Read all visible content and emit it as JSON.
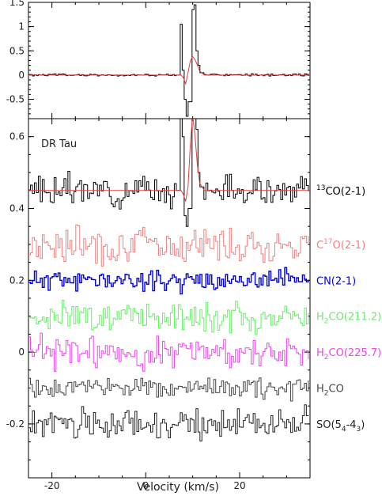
{
  "chart_data": [
    {
      "type": "line",
      "panel": "top",
      "title": "",
      "xlabel": "",
      "ylabel": "",
      "xlim": [
        -25,
        35
      ],
      "ylim": [
        -0.9,
        1.5
      ],
      "yticks": [
        -0.5,
        0,
        0.5,
        1,
        1.5
      ],
      "ytick_labels": [
        "-0.5",
        "0",
        "0.5",
        "1",
        "1.5"
      ],
      "series": [
        {
          "color": "#000000",
          "style": "step",
          "x": [
            -25,
            -20,
            -15,
            -10,
            -5,
            0,
            5,
            6.5,
            7.0,
            7.5,
            8.0,
            8.5,
            9.0,
            9.5,
            10.0,
            10.5,
            11.0,
            11.5,
            12,
            15,
            20,
            25,
            30,
            35
          ],
          "y": [
            0,
            0,
            0,
            0,
            0,
            0,
            0,
            0,
            1.05,
            0.1,
            -0.5,
            -0.85,
            -0.55,
            1.35,
            1.45,
            0.5,
            0.2,
            0.05,
            0,
            0,
            0,
            0,
            0,
            0
          ]
        },
        {
          "color": "#e04040",
          "style": "line",
          "x": [
            -25,
            6,
            7.5,
            8.0,
            8.5,
            9.0,
            9.5,
            10.0,
            10.5,
            11.0,
            11.5,
            12.5,
            35
          ],
          "y": [
            0,
            0,
            0,
            -0.05,
            -0.18,
            0.05,
            0.3,
            0.38,
            0.32,
            0.2,
            0.08,
            0,
            0
          ]
        }
      ]
    },
    {
      "type": "line",
      "panel": "bottom",
      "title": "DR Tau",
      "xlabel": "Velocity (km/s)",
      "ylabel": "",
      "xlim": [
        -25,
        35
      ],
      "ylim": [
        -0.35,
        0.65
      ],
      "xticks": [
        -20,
        0,
        20
      ],
      "xtick_labels": [
        "-20",
        "0",
        "20"
      ],
      "yticks": [
        -0.2,
        0,
        0.2,
        0.4,
        0.6
      ],
      "ytick_labels": [
        "-0.2",
        "0",
        "0.2",
        "0.4",
        "0.6"
      ],
      "series": [
        {
          "name": "13CO(2-1)",
          "label_parts": [
            "",
            "13",
            "CO(2-1)",
            ""
          ],
          "label_mode": "sup",
          "color": "#000000",
          "offset": 0.45,
          "noise": 0.02,
          "seed": 3
        },
        {
          "name": "C17O(2-1)",
          "label_parts": [
            "C",
            "17",
            "O(2-1)",
            ""
          ],
          "label_mode": "sup",
          "color": "#f08080",
          "offset": 0.3,
          "noise": 0.025,
          "seed": 7
        },
        {
          "name": "CN(2-1)",
          "label_parts": [
            "CN(2-1)",
            "",
            "",
            ""
          ],
          "label_mode": "none",
          "color": "#0000e0",
          "offset": 0.2,
          "noise": 0.014,
          "seed": 11
        },
        {
          "name": "H2CO(211.2)",
          "label_parts": [
            "H",
            "2",
            "CO(211.2)",
            ""
          ],
          "label_mode": "sub",
          "color": "#66ee66",
          "offset": 0.1,
          "noise": 0.02,
          "seed": 17
        },
        {
          "name": "H2CO(225.7)",
          "label_parts": [
            "H",
            "2",
            "CO(225.7)",
            ""
          ],
          "label_mode": "sub",
          "color": "#ee44ee",
          "offset": 0.0,
          "noise": 0.022,
          "seed": 23
        },
        {
          "name": "H2CO",
          "label_parts": [
            "H",
            "2",
            "CO",
            ""
          ],
          "label_mode": "sub",
          "color": "#444444",
          "offset": -0.1,
          "noise": 0.013,
          "seed": 29
        },
        {
          "name": "SO(54-43)",
          "label_parts": [
            "SO(5",
            "4",
            "-4",
            "3",
            ")"
          ],
          "label_mode": "subsub",
          "color": "#222222",
          "offset": -0.2,
          "noise": 0.02,
          "seed": 31
        }
      ],
      "line_13co": {
        "x": [
          6.5,
          7.0,
          7.5,
          8.0,
          8.5,
          9.0,
          9.5,
          10.0,
          10.5,
          11.0,
          11.5,
          12.0
        ],
        "y": [
          0.45,
          0.72,
          0.6,
          0.38,
          0.35,
          0.4,
          0.72,
          0.8,
          0.62,
          0.5,
          0.46,
          0.45
        ]
      },
      "fit_13co": {
        "color": "#e04040",
        "x": [
          -25,
          7.5,
          8.0,
          8.5,
          9.0,
          9.5,
          10.0,
          10.5,
          11.0,
          11.5,
          12.5,
          35
        ],
        "y": [
          0.45,
          0.45,
          0.44,
          0.42,
          0.46,
          0.58,
          0.66,
          0.6,
          0.52,
          0.47,
          0.45,
          0.45
        ]
      }
    }
  ]
}
